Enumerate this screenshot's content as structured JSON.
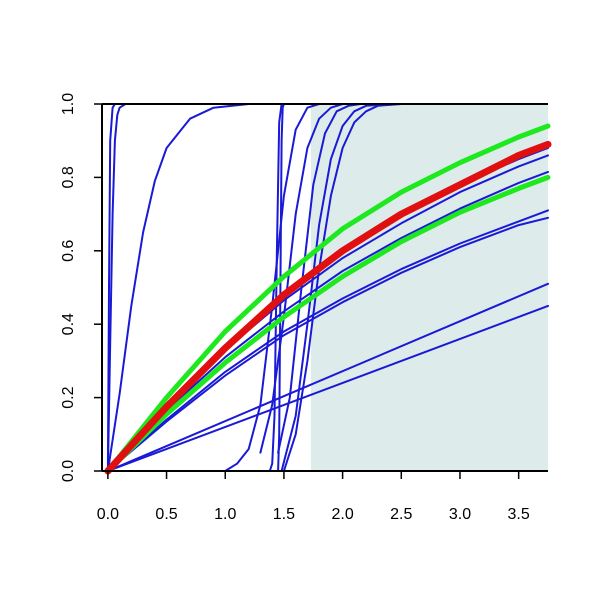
{
  "chart_data": {
    "type": "line",
    "title": "",
    "xlabel": "",
    "ylabel": "",
    "xlim": [
      -0.05,
      3.75
    ],
    "ylim": [
      0.0,
      1.0
    ],
    "grid": false,
    "legend": "none",
    "x_ticks": [
      "0.0",
      "0.5",
      "1.0",
      "1.5",
      "2.0",
      "2.5",
      "3.0",
      "3.5"
    ],
    "y_ticks": [
      "0.0",
      "0.2",
      "0.4",
      "0.6",
      "0.8",
      "1.0"
    ],
    "shaded_region": {
      "x": [
        1.73,
        3.75
      ],
      "y": [
        0.0,
        1.0
      ],
      "color": "#deebeb"
    },
    "colors": {
      "blue": "#1a1ad6",
      "red": "#e01010",
      "green": "#1ee81e",
      "axis": "#000000"
    },
    "series": [
      {
        "color": "blue",
        "x": [
          0,
          0.01,
          0.02,
          0.04,
          0.06,
          0.1
        ],
        "y": [
          0,
          0.5,
          0.9,
          0.99,
          1.0,
          1.0
        ]
      },
      {
        "color": "blue",
        "x": [
          0,
          0.02,
          0.04,
          0.06,
          0.08,
          0.1,
          0.15
        ],
        "y": [
          0,
          0.35,
          0.7,
          0.9,
          0.97,
          0.99,
          1.0
        ]
      },
      {
        "color": "blue",
        "x": [
          0,
          0.1,
          0.2,
          0.3,
          0.4,
          0.5,
          0.7,
          0.9,
          1.2
        ],
        "y": [
          0,
          0.21,
          0.45,
          0.65,
          0.79,
          0.88,
          0.96,
          0.99,
          1.0
        ]
      },
      {
        "color": "blue",
        "x": [
          1.38,
          1.4,
          1.42,
          1.44,
          1.46,
          1.48
        ],
        "y": [
          0,
          0.02,
          0.15,
          0.6,
          0.95,
          1.0
        ]
      },
      {
        "color": "blue",
        "x": [
          1.45,
          1.46,
          1.47,
          1.48,
          1.49,
          1.5
        ],
        "y": [
          0,
          0.1,
          0.5,
          0.9,
          0.99,
          1.0
        ]
      },
      {
        "color": "blue",
        "x": [
          1.0,
          1.1,
          1.2,
          1.3,
          1.4,
          1.5,
          1.6,
          1.7,
          1.8
        ],
        "y": [
          0.0,
          0.02,
          0.06,
          0.18,
          0.45,
          0.75,
          0.93,
          0.99,
          1.0
        ]
      },
      {
        "color": "blue",
        "x": [
          1.3,
          1.4,
          1.5,
          1.6,
          1.7,
          1.8,
          1.9,
          2.0
        ],
        "y": [
          0.05,
          0.18,
          0.42,
          0.7,
          0.88,
          0.96,
          0.99,
          1.0
        ]
      },
      {
        "color": "blue",
        "x": [
          1.45,
          1.55,
          1.65,
          1.75,
          1.85,
          1.95,
          2.05,
          2.15
        ],
        "y": [
          0.05,
          0.2,
          0.5,
          0.78,
          0.92,
          0.98,
          0.995,
          1.0
        ]
      },
      {
        "color": "blue",
        "x": [
          1.48,
          1.6,
          1.7,
          1.8,
          1.9,
          2.0,
          2.1,
          2.2,
          2.4
        ],
        "y": [
          0.0,
          0.15,
          0.4,
          0.67,
          0.85,
          0.94,
          0.98,
          0.995,
          1.0
        ]
      },
      {
        "color": "blue",
        "x": [
          1.5,
          1.6,
          1.7,
          1.8,
          1.9,
          2.0,
          2.1,
          2.2,
          2.3,
          2.5
        ],
        "y": [
          0.0,
          0.1,
          0.3,
          0.55,
          0.75,
          0.88,
          0.95,
          0.98,
          0.995,
          1.0
        ]
      },
      {
        "color": "blue",
        "x": [
          0,
          0.5,
          1.0,
          1.5,
          2.0,
          2.5,
          3.0,
          3.5,
          3.75
        ],
        "y": [
          0,
          0.18,
          0.34,
          0.48,
          0.6,
          0.7,
          0.78,
          0.85,
          0.88
        ]
      },
      {
        "color": "blue",
        "x": [
          0,
          0.5,
          1.0,
          1.5,
          2.0,
          2.5,
          3.0,
          3.5,
          3.75
        ],
        "y": [
          0,
          0.175,
          0.33,
          0.465,
          0.58,
          0.675,
          0.76,
          0.83,
          0.86
        ]
      },
      {
        "color": "blue",
        "x": [
          0,
          0.5,
          1.0,
          1.5,
          2.0,
          2.5,
          3.0,
          3.5,
          3.75
        ],
        "y": [
          0,
          0.165,
          0.31,
          0.435,
          0.545,
          0.635,
          0.715,
          0.785,
          0.815
        ]
      },
      {
        "color": "blue",
        "x": [
          0,
          0.5,
          1.0,
          1.5,
          2.0,
          2.5,
          3.0,
          3.5,
          3.75
        ],
        "y": [
          0,
          0.14,
          0.27,
          0.38,
          0.47,
          0.55,
          0.62,
          0.68,
          0.71
        ]
      },
      {
        "color": "blue",
        "x": [
          0,
          0.5,
          1.0,
          1.5,
          2.0,
          2.5,
          3.0,
          3.5,
          3.75
        ],
        "y": [
          0,
          0.135,
          0.26,
          0.37,
          0.46,
          0.54,
          0.61,
          0.67,
          0.69
        ]
      },
      {
        "color": "blue",
        "x": [
          0,
          3.75
        ],
        "y": [
          0,
          0.51
        ]
      },
      {
        "color": "blue",
        "x": [
          0,
          3.75
        ],
        "y": [
          0,
          0.45
        ]
      },
      {
        "color": "green",
        "width": 5,
        "x": [
          0,
          0.5,
          1.0,
          1.5,
          2.0,
          2.5,
          3.0,
          3.5,
          3.75
        ],
        "y": [
          0,
          0.2,
          0.38,
          0.53,
          0.66,
          0.76,
          0.84,
          0.91,
          0.94
        ]
      },
      {
        "color": "green",
        "width": 5,
        "x": [
          0,
          0.5,
          1.0,
          1.5,
          2.0,
          2.5,
          3.0,
          3.5,
          3.75
        ],
        "y": [
          0,
          0.155,
          0.295,
          0.42,
          0.53,
          0.625,
          0.705,
          0.77,
          0.8
        ]
      },
      {
        "color": "red",
        "width": 7,
        "x": [
          0,
          0.5,
          1.0,
          1.5,
          2.0,
          2.5,
          3.0,
          3.5,
          3.75
        ],
        "y": [
          0,
          0.175,
          0.335,
          0.48,
          0.6,
          0.7,
          0.78,
          0.86,
          0.89
        ]
      }
    ]
  }
}
